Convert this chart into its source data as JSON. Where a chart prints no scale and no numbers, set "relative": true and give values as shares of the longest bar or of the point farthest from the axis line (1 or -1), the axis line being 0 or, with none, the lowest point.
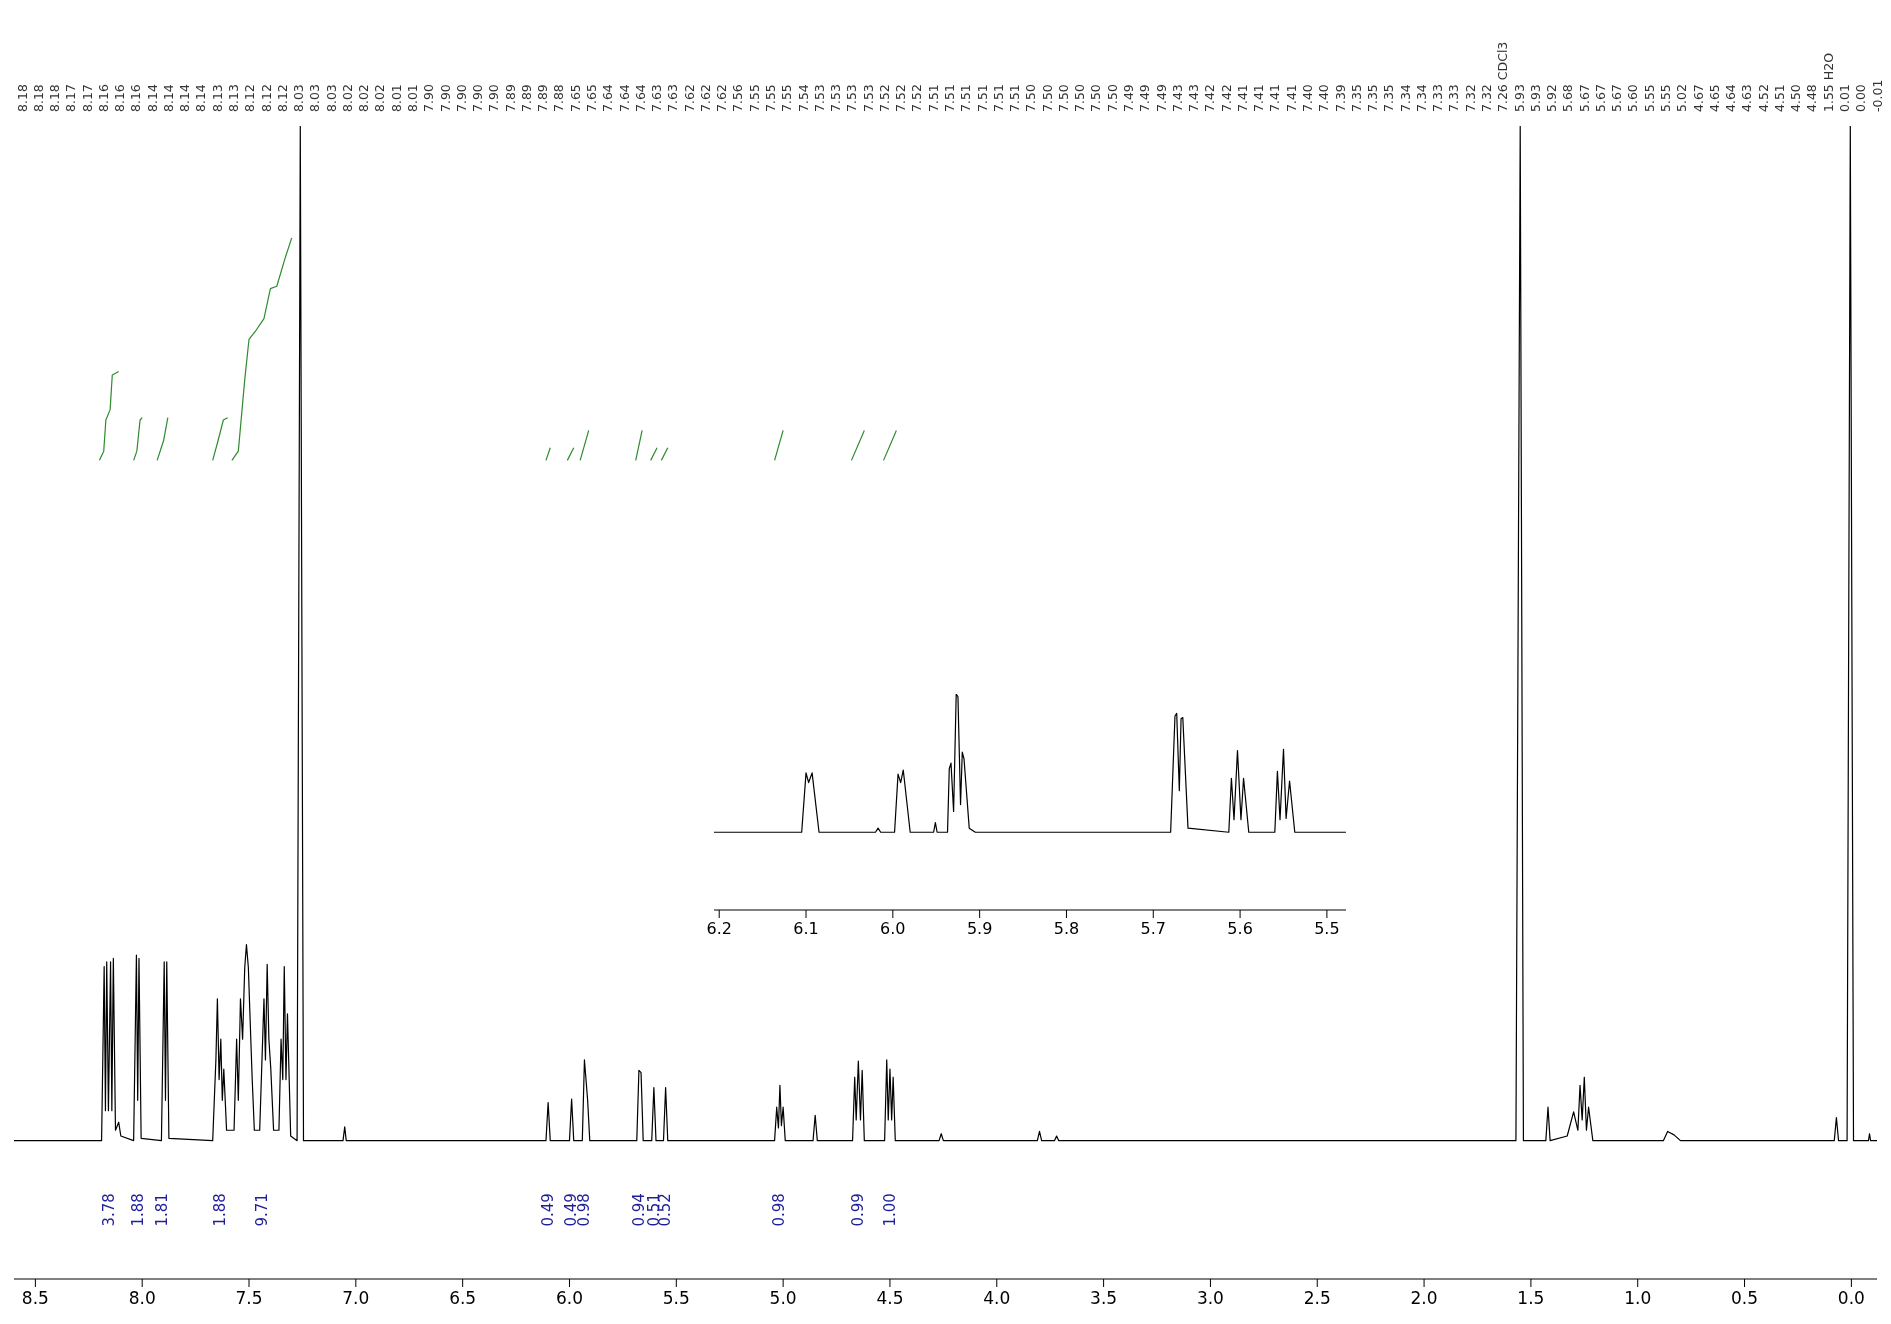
{
  "chart_data": [
    {
      "type": "line",
      "relative": true,
      "xlim": [
        8.6,
        -0.12
      ],
      "xticks": [
        8.5,
        {
          "value": 8,
          "label": "8.0"
        },
        7.5,
        {
          "value": 7,
          "label": "7.0"
        },
        6.5,
        {
          "value": 6,
          "label": "6.0"
        },
        5.5,
        {
          "value": 5,
          "label": "5.0"
        },
        4.5,
        {
          "value": 4,
          "label": "4.0"
        },
        3.5,
        {
          "value": 3,
          "label": "3.0"
        },
        2.5,
        {
          "value": 2,
          "label": "2.0"
        },
        1.5,
        {
          "value": 1,
          "label": "1.0"
        },
        0.5,
        {
          "value": 0,
          "label": "0.0"
        }
      ],
      "annotations": [
        "8.18",
        "8.18",
        "8.18",
        "8.17",
        "8.17",
        "8.16",
        "8.16",
        "8.16",
        "8.14",
        "8.14",
        "8.14",
        "8.14",
        "8.13",
        "8.13",
        "8.12",
        "8.12",
        "8.12",
        "8.03",
        "8.03",
        "8.03",
        "8.02",
        "8.02",
        "8.02",
        "8.01",
        "8.01",
        "7.90",
        "7.90",
        "7.90",
        "7.90",
        "7.90",
        "7.89",
        "7.89",
        "7.89",
        "7.88",
        "7.65",
        "7.65",
        "7.64",
        "7.64",
        "7.64",
        "7.63",
        "7.63",
        "7.62",
        "7.62",
        "7.62",
        "7.56",
        "7.55",
        "7.55",
        "7.55",
        "7.54",
        "7.53",
        "7.53",
        "7.53",
        "7.53",
        "7.52",
        "7.52",
        "7.52",
        "7.51",
        "7.51",
        "7.51",
        "7.51",
        "7.51",
        "7.51",
        "7.50",
        "7.50",
        "7.50",
        "7.50",
        "7.50",
        "7.50",
        "7.49",
        "7.49",
        "7.49",
        "7.43",
        "7.43",
        "7.42",
        "7.42",
        "7.41",
        "7.41",
        "7.41",
        "7.41",
        "7.40",
        "7.40",
        "7.39",
        "7.35",
        "7.35",
        "7.35",
        "7.34",
        "7.34",
        "7.33",
        "7.33",
        "7.32",
        "7.32",
        "7.26 CDCl3",
        "5.93",
        "5.93",
        "5.92",
        "5.68",
        "5.67",
        "5.67",
        "5.67",
        "5.60",
        "5.55",
        "5.55",
        "5.02",
        "4.67",
        "4.65",
        "4.64",
        "4.63",
        "4.52",
        "4.51",
        "4.50",
        "4.48",
        "1.55 H2O",
        "0.01",
        "0.00",
        "-0.01",
        "3.78",
        "1.88",
        "1.81",
        "1.88",
        "9.71",
        "0.49",
        "0.49",
        "0.98",
        "0.94",
        "0.51",
        "0.52",
        "0.98",
        "0.99",
        "1.00"
      ],
      "series": [
        {
          "color": "#000000",
          "x": [
            8.6,
            8.19,
            8.178,
            8.172,
            8.166,
            8.158,
            8.148,
            8.142,
            8.135,
            8.125,
            8.11,
            8.1,
            8.04,
            8.027,
            8.021,
            8.015,
            8.005,
            7.91,
            7.897,
            7.891,
            7.885,
            7.875,
            7.67,
            7.655,
            7.648,
            7.64,
            7.632,
            7.625,
            7.618,
            7.605,
            7.57,
            7.558,
            7.55,
            7.54,
            7.53,
            7.52,
            7.512,
            7.503,
            7.495,
            7.485,
            7.475,
            7.45,
            7.43,
            7.423,
            7.415,
            7.407,
            7.398,
            7.385,
            7.36,
            7.35,
            7.342,
            7.335,
            7.327,
            7.32,
            7.305,
            7.275,
            7.26,
            7.245,
            7.06,
            7.052,
            7.045,
            6.11,
            6.1,
            6.09,
            6.0,
            5.99,
            5.98,
            5.94,
            5.93,
            5.915,
            5.905,
            5.685,
            5.675,
            5.665,
            5.655,
            5.615,
            5.605,
            5.595,
            5.56,
            5.55,
            5.54,
            5.04,
            5.03,
            5.022,
            5.015,
            5.008,
            5.0,
            4.99,
            4.86,
            4.85,
            4.84,
            4.675,
            4.665,
            4.658,
            4.648,
            4.638,
            4.63,
            4.62,
            4.525,
            4.515,
            4.508,
            4.5,
            4.492,
            4.485,
            4.475,
            4.27,
            4.26,
            4.25,
            3.81,
            3.8,
            3.79,
            3.73,
            3.72,
            3.71,
            1.57,
            1.55,
            1.535,
            1.43,
            1.42,
            1.41,
            1.33,
            1.3,
            1.28,
            1.27,
            1.26,
            1.25,
            1.24,
            1.23,
            1.21,
            0.88,
            0.86,
            0.83,
            0.8,
            0.08,
            0.07,
            0.06,
            0.02,
            0.005,
            -0.01,
            -0.08,
            -0.085,
            -0.09,
            -0.12
          ],
          "values": [
            0.12,
            0.12,
            0.271,
            0.146,
            0.275,
            0.146,
            0.275,
            0.146,
            0.278,
            0.129,
            0.136,
            0.124,
            0.12,
            0.281,
            0.155,
            0.278,
            0.122,
            0.12,
            0.275,
            0.155,
            0.275,
            0.122,
            0.12,
            0.19,
            0.243,
            0.173,
            0.208,
            0.155,
            0.182,
            0.129,
            0.129,
            0.208,
            0.155,
            0.243,
            0.208,
            0.27,
            0.29,
            0.27,
            0.226,
            0.173,
            0.129,
            0.129,
            0.243,
            0.19,
            0.273,
            0.208,
            0.182,
            0.129,
            0.129,
            0.208,
            0.173,
            0.271,
            0.173,
            0.23,
            0.124,
            0.12,
            1,
            0.12,
            0.12,
            0.132,
            0.12,
            0.12,
            0.153,
            0.12,
            0.12,
            0.156,
            0.12,
            0.12,
            0.19,
            0.155,
            0.12,
            0.12,
            0.181,
            0.179,
            0.12,
            0.12,
            0.166,
            0.12,
            0.12,
            0.166,
            0.12,
            0.12,
            0.149,
            0.131,
            0.168,
            0.133,
            0.149,
            0.12,
            0.12,
            0.142,
            0.12,
            0.12,
            0.175,
            0.138,
            0.189,
            0.138,
            0.181,
            0.12,
            0.12,
            0.19,
            0.138,
            0.182,
            0.138,
            0.175,
            0.12,
            0.12,
            0.126,
            0.12,
            0.12,
            0.128,
            0.12,
            0.12,
            0.124,
            0.12,
            0.12,
            1,
            0.12,
            0.12,
            0.149,
            0.12,
            0.124,
            0.145,
            0.129,
            0.168,
            0.138,
            0.175,
            0.129,
            0.149,
            0.12,
            0.12,
            0.128,
            0.125,
            0.12,
            0.12,
            0.14,
            0.12,
            0.12,
            1,
            0.12,
            0.12,
            0.126,
            0.12,
            0.12
          ]
        },
        {
          "color": "#2e8b2e",
          "x": [
            8.2,
            8.18,
            8.17,
            8.15,
            8.14,
            8.11,
            8.07,
            8.04,
            8.025,
            8.01,
            8.0,
            7.96,
            7.93,
            7.9,
            7.88,
            7.77,
            7.67,
            7.645,
            7.62,
            7.6,
            7.59,
            7.58,
            7.55,
            7.52,
            7.5,
            7.47,
            7.43,
            7.4,
            7.37,
            7.33,
            7.3,
            6.2,
            6.11,
            6.09,
            6.05,
            6.01,
            5.98,
            5.965,
            5.95,
            5.91,
            5.8,
            5.69,
            5.66,
            5.64,
            5.62,
            5.59,
            5.58,
            5.57,
            5.54,
            5.3,
            5.04,
            5.0,
            4.8,
            4.68,
            4.62,
            4.6,
            4.53,
            4.47
          ],
          "values": [
            0.71,
            0.718,
            0.745,
            0.754,
            0.784,
            0.787,
            null,
            0.71,
            0.718,
            0.745,
            0.747,
            null,
            0.71,
            0.727,
            0.747,
            null,
            0.71,
            0.727,
            0.745,
            0.747,
            null,
            0.71,
            0.718,
            0.78,
            0.815,
            0.822,
            0.833,
            0.859,
            0.861,
            0.886,
            0.903,
            null,
            0.71,
            0.721,
            null,
            0.71,
            0.721,
            null,
            0.71,
            0.736,
            null,
            0.71,
            0.736,
            null,
            0.71,
            0.721,
            null,
            0.71,
            0.721,
            null,
            0.71,
            0.736,
            null,
            0.71,
            0.736,
            null,
            0.71,
            0.736
          ]
        }
      ]
    },
    {
      "type": "line",
      "relative": true,
      "xlim": [
        6.206,
        5.478
      ],
      "xticks": [
        6.2,
        6.1,
        {
          "value": 6,
          "label": "6.0"
        },
        5.9,
        5.8,
        5.7,
        5.6,
        5.5
      ],
      "series": [
        {
          "color": "#000000",
          "x": [
            6.206,
            6.105,
            6.1,
            6.097,
            6.093,
            6.085,
            6.02,
            6.017,
            6.014,
            5.998,
            5.994,
            5.991,
            5.988,
            5.98,
            5.953,
            5.951,
            5.949,
            5.937,
            5.935,
            5.933,
            5.93,
            5.927,
            5.925,
            5.922,
            5.92,
            5.918,
            5.912,
            5.905,
            5.68,
            5.675,
            5.673,
            5.67,
            5.668,
            5.666,
            5.66,
            5.613,
            5.61,
            5.607,
            5.603,
            5.599,
            5.596,
            5.59,
            5.56,
            5.557,
            5.554,
            5.55,
            5.547,
            5.543,
            5.537,
            5.478
          ],
          "values": [
            0.36,
            0.36,
            0.635,
            0.59,
            0.635,
            0.36,
            0.36,
            0.379,
            0.36,
            0.36,
            0.629,
            0.59,
            0.648,
            0.36,
            0.36,
            0.405,
            0.36,
            0.36,
            0.654,
            0.68,
            0.456,
            1,
            0.987,
            0.488,
            0.731,
            0.699,
            0.379,
            0.36,
            0.36,
            0.898,
            0.91,
            0.552,
            0.885,
            0.891,
            0.379,
            0.36,
            0.61,
            0.418,
            0.738,
            0.418,
            0.61,
            0.36,
            0.36,
            0.642,
            0.418,
            0.744,
            0.424,
            0.597,
            0.36,
            0.36
          ]
        }
      ]
    }
  ]
}
